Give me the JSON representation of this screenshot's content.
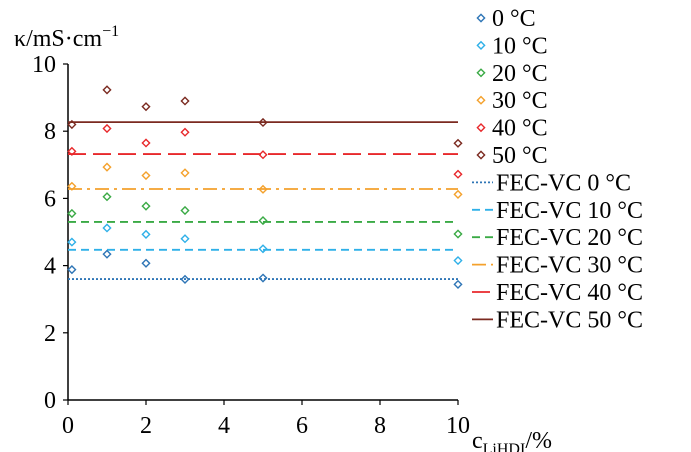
{
  "chart_data": {
    "type": "scatter",
    "ylabel": "κ/mS·cm",
    "ylabel_sup": "−1",
    "xlabel": "c",
    "xlabel_sub": "LiHDI",
    "xlabel_unit": "/%",
    "xlim": [
      0,
      10
    ],
    "ylim": [
      0,
      10
    ],
    "xticks": [
      "0",
      "2",
      "4",
      "6",
      "8",
      "10"
    ],
    "yticks": [
      "0",
      "2",
      "4",
      "6",
      "8",
      "10"
    ],
    "grid": false,
    "legend_position": "right",
    "series": [
      {
        "name": "0 °C",
        "color": "#2e75b6",
        "x": [
          0.1,
          1,
          2,
          3,
          5,
          10
        ],
        "y": [
          3.88,
          4.34,
          4.07,
          3.59,
          3.63,
          3.44
        ]
      },
      {
        "name": "10 °C",
        "color": "#2fb0e8",
        "x": [
          0.1,
          1,
          2,
          3,
          5,
          10
        ],
        "y": [
          4.7,
          5.12,
          4.93,
          4.8,
          4.5,
          4.15
        ]
      },
      {
        "name": "20 °C",
        "color": "#3aaa45",
        "x": [
          0.1,
          1,
          2,
          3,
          5,
          10
        ],
        "y": [
          5.55,
          6.05,
          5.77,
          5.64,
          5.34,
          4.94
        ]
      },
      {
        "name": "30 °C",
        "color": "#f4a12c",
        "x": [
          0.1,
          1,
          2,
          3,
          5,
          10
        ],
        "y": [
          6.36,
          6.93,
          6.68,
          6.76,
          6.27,
          6.12
        ]
      },
      {
        "name": "40 °C",
        "color": "#e8282b",
        "x": [
          0.1,
          1,
          2,
          3,
          5,
          10
        ],
        "y": [
          7.4,
          8.08,
          7.65,
          7.97,
          7.3,
          6.72
        ]
      },
      {
        "name": "50 °C",
        "color": "#7b2a20",
        "x": [
          0.1,
          1,
          2,
          3,
          5,
          10
        ],
        "y": [
          8.2,
          9.23,
          8.73,
          8.9,
          8.26,
          7.64
        ]
      }
    ],
    "reference_lines": [
      {
        "name": "FEC-VC 0 °C",
        "color": "#2e75b6",
        "y": 3.6,
        "style": "dotted"
      },
      {
        "name": "FEC-VC 10 °C",
        "color": "#2fb0e8",
        "y": 4.47,
        "style": "dashed"
      },
      {
        "name": "FEC-VC 20 °C",
        "color": "#3aaa45",
        "y": 5.3,
        "style": "dashed"
      },
      {
        "name": "FEC-VC 30 °C",
        "color": "#f4a12c",
        "y": 6.28,
        "style": "dashdot"
      },
      {
        "name": "FEC-VC 40 °C",
        "color": "#e8282b",
        "y": 7.32,
        "style": "longdash"
      },
      {
        "name": "FEC-VC 50 °C",
        "color": "#7b2a20",
        "y": 8.27,
        "style": "solid"
      }
    ]
  }
}
